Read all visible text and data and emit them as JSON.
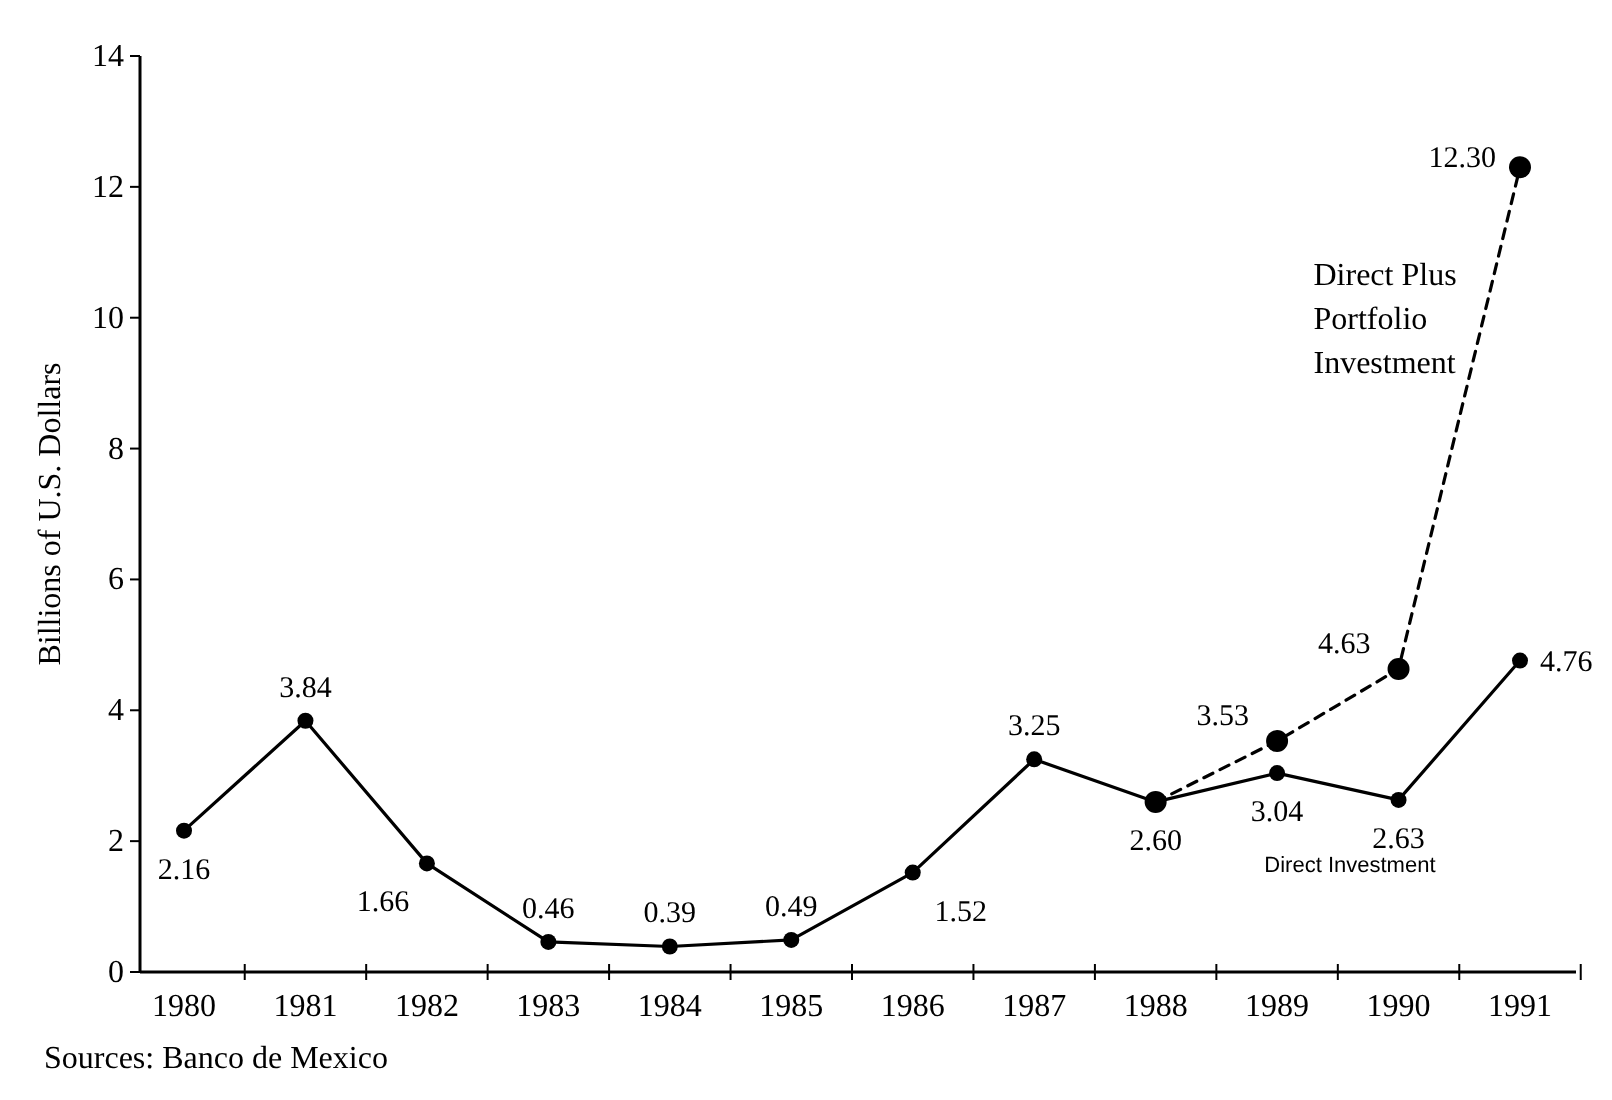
{
  "chart_data": {
    "type": "line",
    "ylabel": "Billions of U.S. Dollars",
    "categories": [
      "1980",
      "1981",
      "1982",
      "1983",
      "1984",
      "1985",
      "1986",
      "1987",
      "1988",
      "1989",
      "1990",
      "1991"
    ],
    "series": [
      {
        "name": "Direct Investment",
        "color": "#000000",
        "line_style": "solid",
        "values": [
          2.16,
          3.84,
          1.66,
          0.46,
          0.39,
          0.49,
          1.52,
          3.25,
          2.6,
          3.04,
          2.63,
          4.76
        ],
        "value_labels": [
          "2.16",
          "3.84",
          "1.66",
          "0.46",
          "0.39",
          "0.49",
          "1.52",
          "3.25",
          "2.60",
          "3.04",
          "2.63",
          "4.76"
        ]
      },
      {
        "name": "Direct Plus Portfolio Investment",
        "color": "#000000",
        "line_style": "dashed",
        "values": [
          null,
          null,
          null,
          null,
          null,
          null,
          null,
          null,
          2.6,
          3.53,
          4.63,
          12.3
        ],
        "value_labels": [
          null,
          null,
          null,
          null,
          null,
          null,
          null,
          null,
          null,
          "3.53",
          "4.63",
          "12.30"
        ]
      }
    ],
    "ylim": [
      0,
      14
    ],
    "yticks": [
      0,
      2,
      4,
      6,
      8,
      10,
      12,
      14
    ],
    "marker": "circle",
    "grid": false,
    "annotations": [
      "Sources: Banco de Mexico"
    ]
  }
}
